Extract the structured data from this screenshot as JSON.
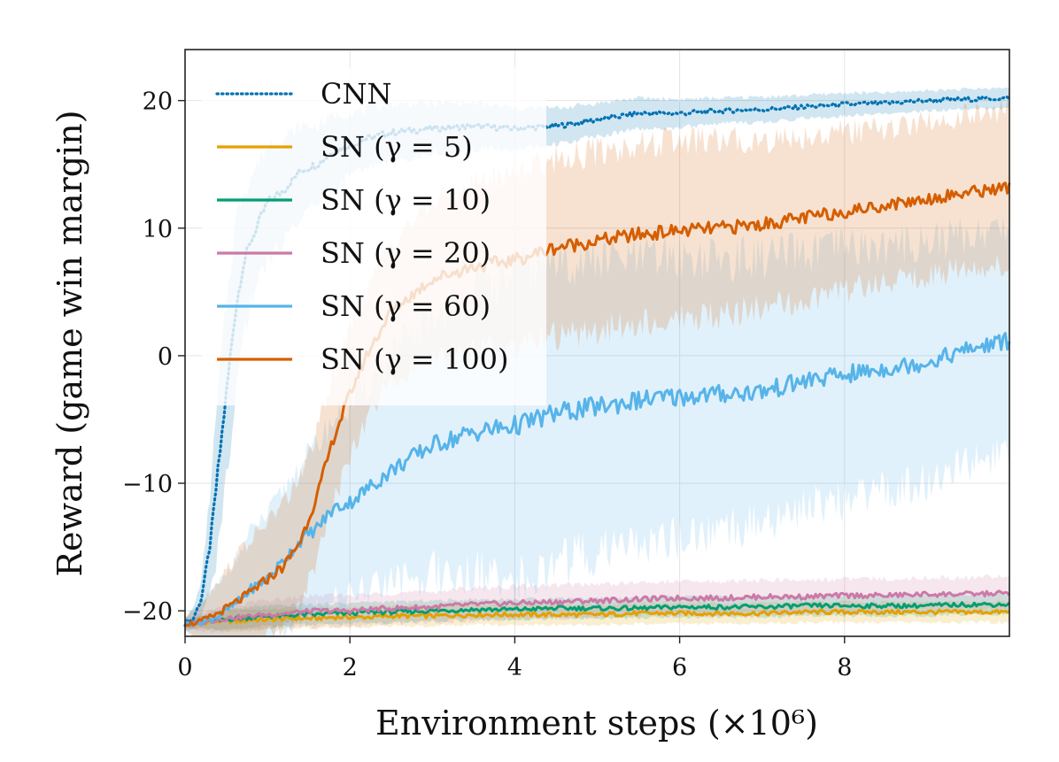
{
  "chart_data": {
    "type": "line",
    "title": "",
    "xlabel": "Environment steps (×10⁶)",
    "ylabel": "Reward (game win margin)",
    "xlim": [
      0,
      10
    ],
    "ylim": [
      -22,
      24
    ],
    "xticks": [
      0,
      2,
      4,
      6,
      8
    ],
    "xtick_labels": [
      "0",
      "2",
      "4",
      "6",
      "8"
    ],
    "yticks": [
      -20,
      -10,
      0,
      10,
      20
    ],
    "ytick_labels": [
      "−20",
      "−10",
      "0",
      "10",
      "20"
    ],
    "grid": true,
    "legend_position": "upper-left",
    "x": [
      0,
      0.1,
      0.2,
      0.3,
      0.4,
      0.5,
      0.6,
      0.7,
      0.8,
      1.0,
      1.2,
      1.4,
      1.6,
      1.8,
      2.0,
      2.2,
      2.5,
      3.0,
      3.5,
      4.0,
      4.5,
      5.0,
      5.5,
      6.0,
      6.5,
      7.0,
      7.5,
      8.0,
      8.5,
      9.0,
      9.5,
      10.0
    ],
    "series": [
      {
        "name": "CNN",
        "label": "CNN",
        "color": "#0072B2",
        "dash": "dotted",
        "values": [
          -21,
          -20.6,
          -19,
          -15,
          -9,
          -3,
          3,
          7,
          9,
          12,
          13,
          14.5,
          15,
          16,
          16.5,
          17,
          17.5,
          17.8,
          18,
          17.8,
          18,
          18.5,
          19,
          19,
          19.2,
          19.3,
          19.5,
          19.7,
          19.8,
          20,
          20.1,
          20.2
        ],
        "band": [
          0.5,
          0.8,
          1.5,
          4,
          6,
          7,
          7,
          6,
          5,
          4.5,
          4,
          3.5,
          3,
          2.8,
          2.5,
          2.3,
          2.2,
          2,
          1.8,
          1.6,
          1.4,
          1.3,
          1.2,
          1.1,
          1,
          1,
          0.9,
          0.9,
          0.8,
          0.8,
          0.8,
          0.8
        ]
      },
      {
        "name": "SN (gamma = 5)",
        "label": "SN (γ = 5)",
        "color": "#E69F00",
        "dash": "solid",
        "values": [
          -21,
          -21,
          -20.9,
          -20.9,
          -20.8,
          -20.8,
          -20.8,
          -20.8,
          -20.7,
          -20.7,
          -20.6,
          -20.6,
          -20.6,
          -20.5,
          -20.5,
          -20.5,
          -20.4,
          -20.4,
          -20.3,
          -20.3,
          -20.3,
          -20.3,
          -20.2,
          -20.2,
          -20.2,
          -20.2,
          -20.1,
          -20.1,
          -20.1,
          -20.1,
          -20.1,
          -20.1
        ],
        "band": [
          0.3,
          0.4,
          0.5,
          0.6,
          0.7,
          0.8,
          0.8,
          0.8,
          0.8,
          0.8,
          0.8,
          0.8,
          0.8,
          0.8,
          0.8,
          0.8,
          0.8,
          0.8,
          0.8,
          0.8,
          0.8,
          0.8,
          0.8,
          0.8,
          0.8,
          0.8,
          0.8,
          0.8,
          0.8,
          0.8,
          0.8,
          0.8
        ]
      },
      {
        "name": "SN (gamma = 10)",
        "label": "SN (γ = 10)",
        "color": "#009E73",
        "dash": "solid",
        "values": [
          -21,
          -21,
          -20.9,
          -20.8,
          -20.8,
          -20.7,
          -20.6,
          -20.6,
          -20.5,
          -20.4,
          -20.4,
          -20.3,
          -20.3,
          -20.2,
          -20.2,
          -20.1,
          -20.1,
          -20,
          -19.9,
          -19.9,
          -19.8,
          -19.8,
          -19.8,
          -19.7,
          -19.7,
          -19.7,
          -19.6,
          -19.6,
          -19.6,
          -19.6,
          -19.5,
          -19.5
        ],
        "band": [
          0.3,
          0.4,
          0.5,
          0.6,
          0.7,
          0.7,
          0.8,
          0.8,
          0.8,
          0.8,
          0.8,
          0.8,
          0.8,
          0.8,
          0.8,
          0.8,
          0.8,
          0.8,
          0.8,
          0.8,
          0.8,
          0.8,
          0.8,
          0.8,
          0.8,
          0.8,
          0.8,
          0.8,
          0.8,
          0.8,
          0.8,
          0.8
        ]
      },
      {
        "name": "SN (gamma = 20)",
        "label": "SN (γ = 20)",
        "color": "#CC79A7",
        "dash": "solid",
        "values": [
          -21,
          -21,
          -20.9,
          -20.8,
          -20.7,
          -20.6,
          -20.5,
          -20.5,
          -20.4,
          -20.3,
          -20.2,
          -20.1,
          -20,
          -20,
          -20,
          -19.9,
          -19.8,
          -19.7,
          -19.5,
          -19.4,
          -19.3,
          -19.2,
          -19.1,
          -19,
          -19,
          -18.9,
          -18.9,
          -18.8,
          -18.8,
          -18.7,
          -18.7,
          -18.6
        ],
        "band": [
          0.4,
          0.5,
          0.7,
          0.8,
          0.9,
          1,
          1,
          1,
          1.1,
          1.1,
          1.1,
          1.2,
          1.2,
          1.2,
          1.2,
          1.2,
          1.2,
          1.2,
          1.3,
          1.3,
          1.3,
          1.3,
          1.3,
          1.3,
          1.3,
          1.3,
          1.3,
          1.3,
          1.3,
          1.3,
          1.3,
          1.3
        ]
      },
      {
        "name": "SN (gamma = 60)",
        "label": "SN (γ = 60)",
        "color": "#56B4E9",
        "dash": "solid",
        "values": [
          -21,
          -21,
          -20.9,
          -20.7,
          -20.4,
          -20,
          -19.5,
          -19,
          -18.3,
          -17.5,
          -16,
          -14.5,
          -13.5,
          -12,
          -11.5,
          -10.5,
          -9,
          -7,
          -6,
          -5.5,
          -4.5,
          -4,
          -3.5,
          -3.2,
          -3,
          -2.8,
          -2,
          -1.5,
          -1,
          -0.5,
          0.5,
          1.2
        ],
        "band": [
          0.5,
          1,
          1.5,
          2,
          2.5,
          3,
          3.5,
          4,
          4.5,
          5,
          5.5,
          6,
          6.5,
          7,
          7.5,
          8,
          9,
          10,
          11,
          12,
          12,
          11.5,
          11,
          11,
          10.5,
          10.5,
          10,
          10,
          9.5,
          9.5,
          9,
          9
        ]
      },
      {
        "name": "SN (gamma = 100)",
        "label": "SN (γ = 100)",
        "color": "#D55E00",
        "dash": "solid",
        "values": [
          -21,
          -21,
          -20.8,
          -20.5,
          -20.2,
          -19.8,
          -19.4,
          -19,
          -18.5,
          -17.5,
          -16.5,
          -14.5,
          -11,
          -6.5,
          -3,
          0,
          3.5,
          6,
          7,
          7.5,
          8.5,
          9,
          9.5,
          9.8,
          10,
          10.3,
          10.8,
          11.3,
          11.8,
          12.3,
          12.8,
          13.2
        ],
        "band": [
          0.5,
          1,
          1.5,
          2,
          2.5,
          3,
          3.5,
          4,
          4,
          4.5,
          5,
          5,
          5,
          5,
          5,
          5,
          5.5,
          6,
          6.5,
          7,
          7,
          7,
          7,
          7,
          6.8,
          6.6,
          6.4,
          6.2,
          6,
          6,
          6,
          6
        ]
      }
    ]
  }
}
